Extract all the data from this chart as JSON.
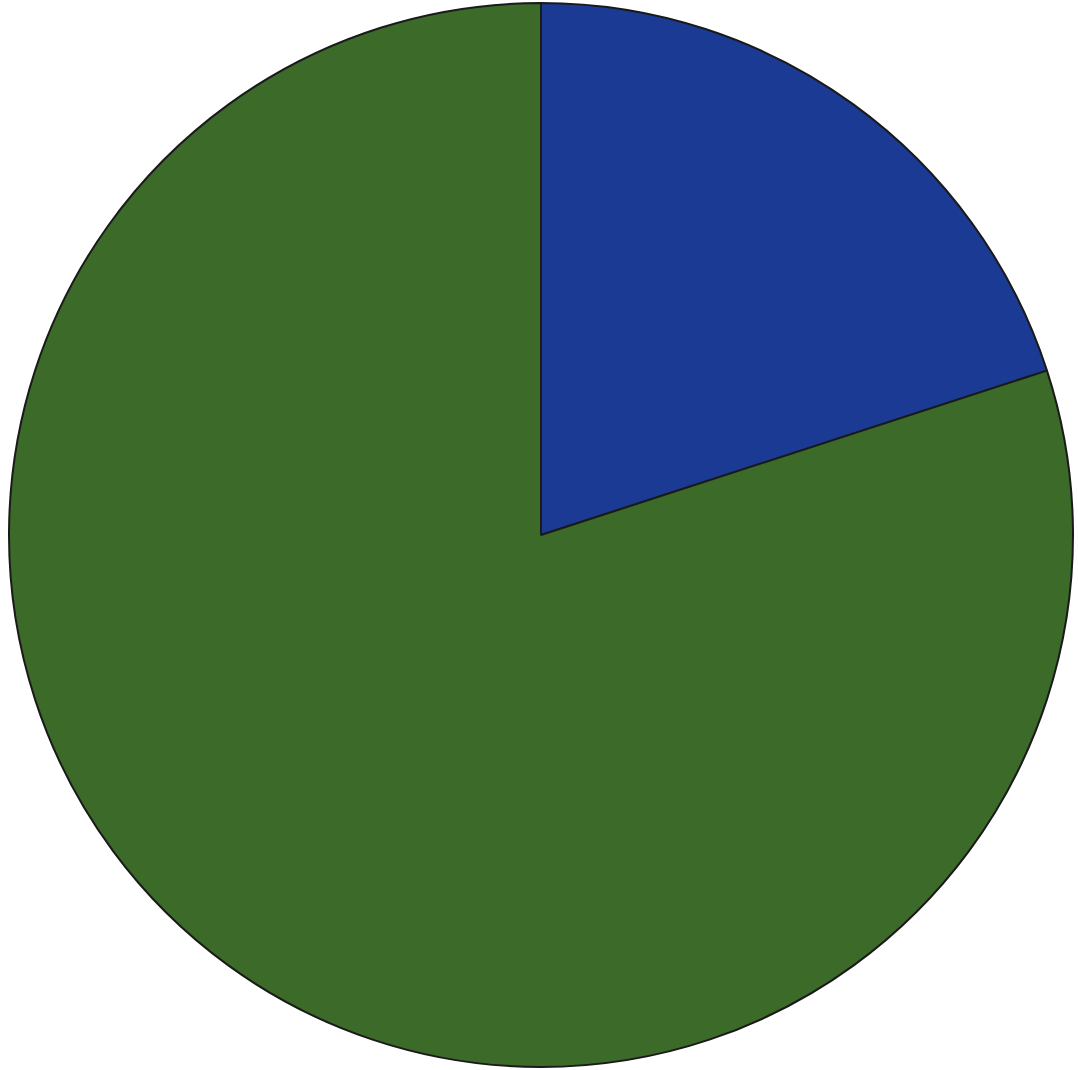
{
  "chart_data": {
    "type": "pie",
    "categories": [
      null,
      null
    ],
    "values": [
      20,
      80
    ],
    "colors": [
      "#1b3a94",
      "#3b6a29"
    ]
  }
}
